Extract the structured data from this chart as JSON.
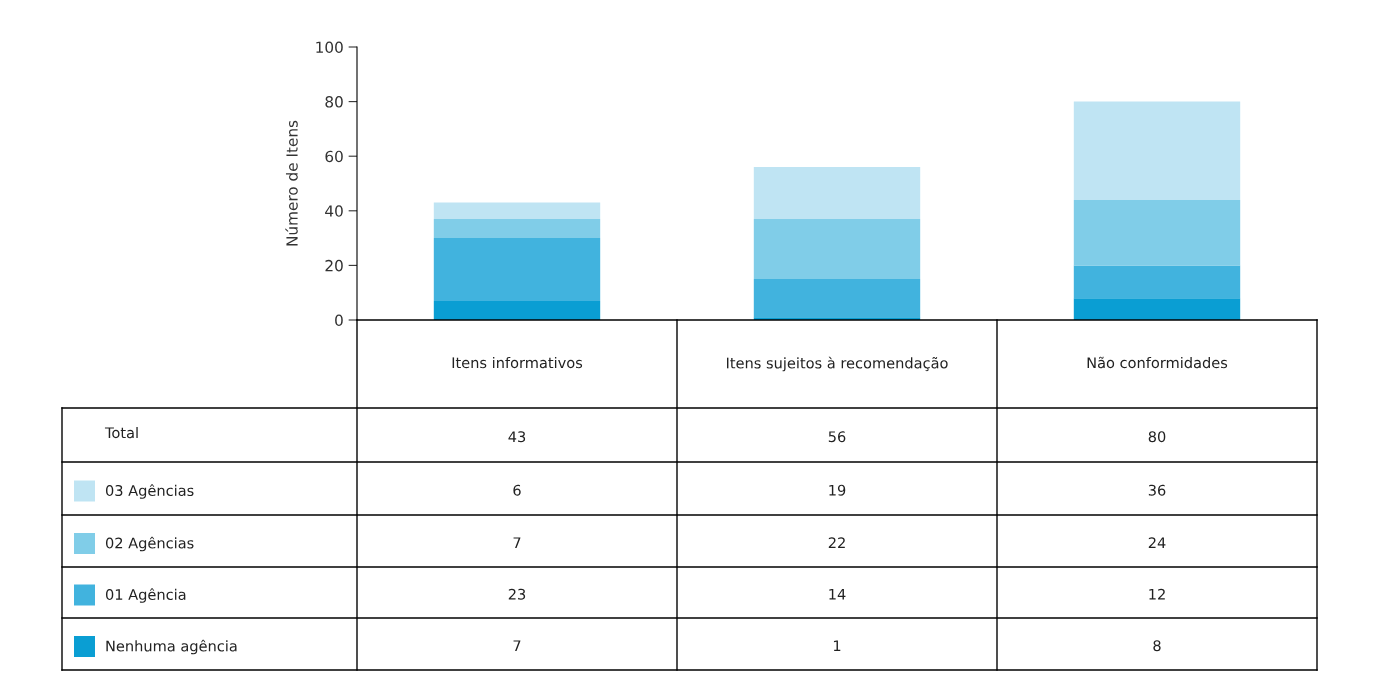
{
  "chart_data": {
    "type": "bar",
    "stacked": true,
    "ylabel": "Número de Itens",
    "categories": [
      "Itens informativos",
      "Itens sujeitos à recomendação",
      "Não conformidades"
    ],
    "series": [
      {
        "name": "Nenhuma agência",
        "color": "#0a9ed3",
        "values": [
          7,
          1,
          8
        ]
      },
      {
        "name": "01 Agência",
        "color": "#41b3de",
        "values": [
          23,
          14,
          12
        ]
      },
      {
        "name": "02 Agências",
        "color": "#80cde8",
        "values": [
          7,
          22,
          24
        ]
      },
      {
        "name": "03 Agências",
        "color": "#bfe4f3",
        "values": [
          6,
          19,
          36
        ]
      }
    ],
    "annotations": [
      "Total",
      "43",
      "56",
      "80"
    ],
    "ylim": [
      0,
      100
    ],
    "yticks": [
      0,
      20,
      40,
      60,
      80,
      100
    ],
    "data_labels": true,
    "legend": "bottom",
    "grid": false
  }
}
